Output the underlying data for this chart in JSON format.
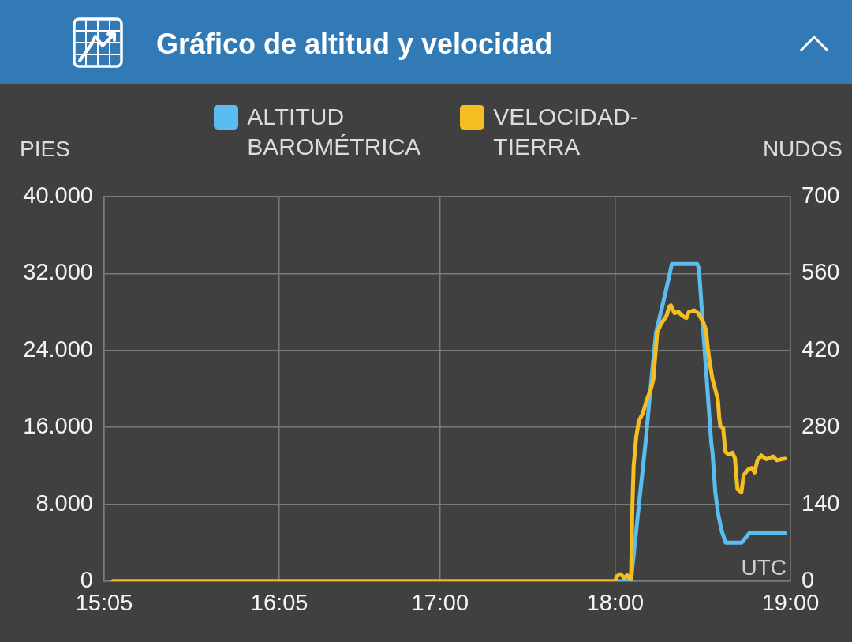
{
  "chart_data": {
    "type": "line",
    "title": "Gráfico de altitud y velocidad",
    "ylabel": "PIES",
    "y2label": "NUDOS",
    "annotations": [
      "UTC"
    ],
    "xlim": [
      15.0833,
      19
    ],
    "xticks": [
      {
        "value": 15.0833,
        "label": "15:05"
      },
      {
        "value": 16.0833,
        "label": "16:05"
      },
      {
        "value": 17,
        "label": "17:00"
      },
      {
        "value": 18,
        "label": "18:00"
      },
      {
        "value": 19,
        "label": "19:00"
      }
    ],
    "ylim": [
      0,
      40000
    ],
    "yticks": [
      0,
      {
        "value": 8000,
        "label": "8.000"
      },
      {
        "value": 16000,
        "label": "16.000"
      },
      {
        "value": 24000,
        "label": "24.000"
      },
      {
        "value": 32000,
        "label": "32.000"
      },
      {
        "value": 40000,
        "label": "40.000"
      }
    ],
    "y2lim": [
      0,
      700
    ],
    "y2ticks": [
      0,
      140,
      280,
      420,
      560,
      700
    ],
    "grid": true,
    "legend": "top",
    "marker": "none",
    "series": [
      {
        "name": "ALTITUD BAROMÉTRICA",
        "color": "#5bbcf0",
        "x": [
          15.133,
          18.09,
          18.135,
          18.173,
          18.195,
          18.218,
          18.233,
          18.27,
          18.308,
          18.323,
          18.468,
          18.478,
          18.503,
          18.548,
          18.555,
          18.571,
          18.586,
          18.608,
          18.631,
          18.72,
          18.766,
          18.968
        ],
        "values": [
          0,
          0,
          7900,
          14400,
          18800,
          23200,
          25900,
          28700,
          31700,
          33000,
          33000,
          32500,
          25900,
          14400,
          13400,
          9300,
          7100,
          5200,
          4000,
          4000,
          5000,
          5000
        ]
      },
      {
        "name": "VELOCIDAD-TIERRA",
        "color": "#f5bf24",
        "axis": "y2",
        "x": [
          15.133,
          18.0,
          18.009,
          18.03,
          18.053,
          18.068,
          18.083,
          18.09,
          18.098,
          18.105,
          18.12,
          18.135,
          18.158,
          18.18,
          18.203,
          18.218,
          18.225,
          18.24,
          18.263,
          18.293,
          18.308,
          18.318,
          18.338,
          18.361,
          18.383,
          18.406,
          18.42,
          18.45,
          18.473,
          18.503,
          18.518,
          18.528,
          18.54,
          18.555,
          18.571,
          18.586,
          18.593,
          18.6,
          18.616,
          18.628,
          18.645,
          18.668,
          18.683,
          18.69,
          18.698,
          18.72,
          18.733,
          18.758,
          18.778,
          18.796,
          18.811,
          18.833,
          18.863,
          18.901,
          18.923,
          18.946,
          18.968
        ],
        "values": [
          0,
          0,
          9,
          13,
          6,
          11,
          4,
          4,
          138,
          210,
          263,
          292,
          306,
          330,
          349,
          368,
          397,
          454,
          469,
          483,
          500,
          502,
          488,
          490,
          483,
          479,
          490,
          493,
          488,
          471,
          457,
          425,
          397,
          368,
          349,
          330,
          300,
          282,
          279,
          236,
          231,
          234,
          224,
          195,
          167,
          162,
          193,
          203,
          206,
          198,
          220,
          229,
          222,
          227,
          220,
          222,
          223
        ]
      }
    ]
  }
}
